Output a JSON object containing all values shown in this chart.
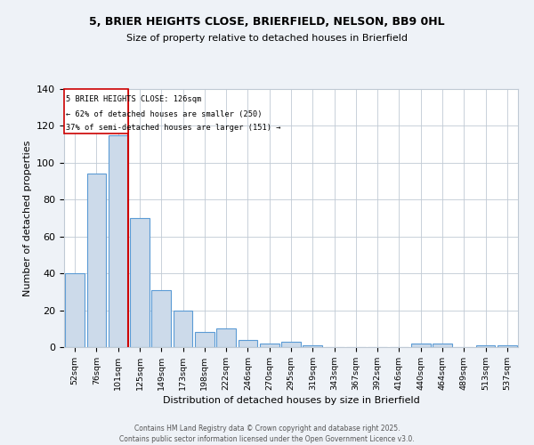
{
  "title_line1": "5, BRIER HEIGHTS CLOSE, BRIERFIELD, NELSON, BB9 0HL",
  "title_line2": "Size of property relative to detached houses in Brierfield",
  "xlabel": "Distribution of detached houses by size in Brierfield",
  "ylabel": "Number of detached properties",
  "categories": [
    "52sqm",
    "76sqm",
    "101sqm",
    "125sqm",
    "149sqm",
    "173sqm",
    "198sqm",
    "222sqm",
    "246sqm",
    "270sqm",
    "295sqm",
    "319sqm",
    "343sqm",
    "367sqm",
    "392sqm",
    "416sqm",
    "440sqm",
    "464sqm",
    "489sqm",
    "513sqm",
    "537sqm"
  ],
  "values": [
    40,
    94,
    115,
    70,
    31,
    20,
    8,
    10,
    4,
    2,
    3,
    1,
    0,
    0,
    0,
    0,
    2,
    2,
    0,
    1,
    1
  ],
  "bar_color": "#ccdaea",
  "bar_edge_color": "#5b9bd5",
  "property_bin_index": 2,
  "vline_color": "#cc0000",
  "annotation_box_color": "#cc0000",
  "annotation_text_line1": "5 BRIER HEIGHTS CLOSE: 126sqm",
  "annotation_text_line2": "← 62% of detached houses are smaller (250)",
  "annotation_text_line3": "37% of semi-detached houses are larger (151) →",
  "ylim": [
    0,
    140
  ],
  "yticks": [
    0,
    20,
    40,
    60,
    80,
    100,
    120,
    140
  ],
  "footer_line1": "Contains HM Land Registry data © Crown copyright and database right 2025.",
  "footer_line2": "Contains public sector information licensed under the Open Government Licence v3.0.",
  "background_color": "#eef2f7",
  "plot_bg_color": "#ffffff",
  "grid_color": "#c0cad4"
}
